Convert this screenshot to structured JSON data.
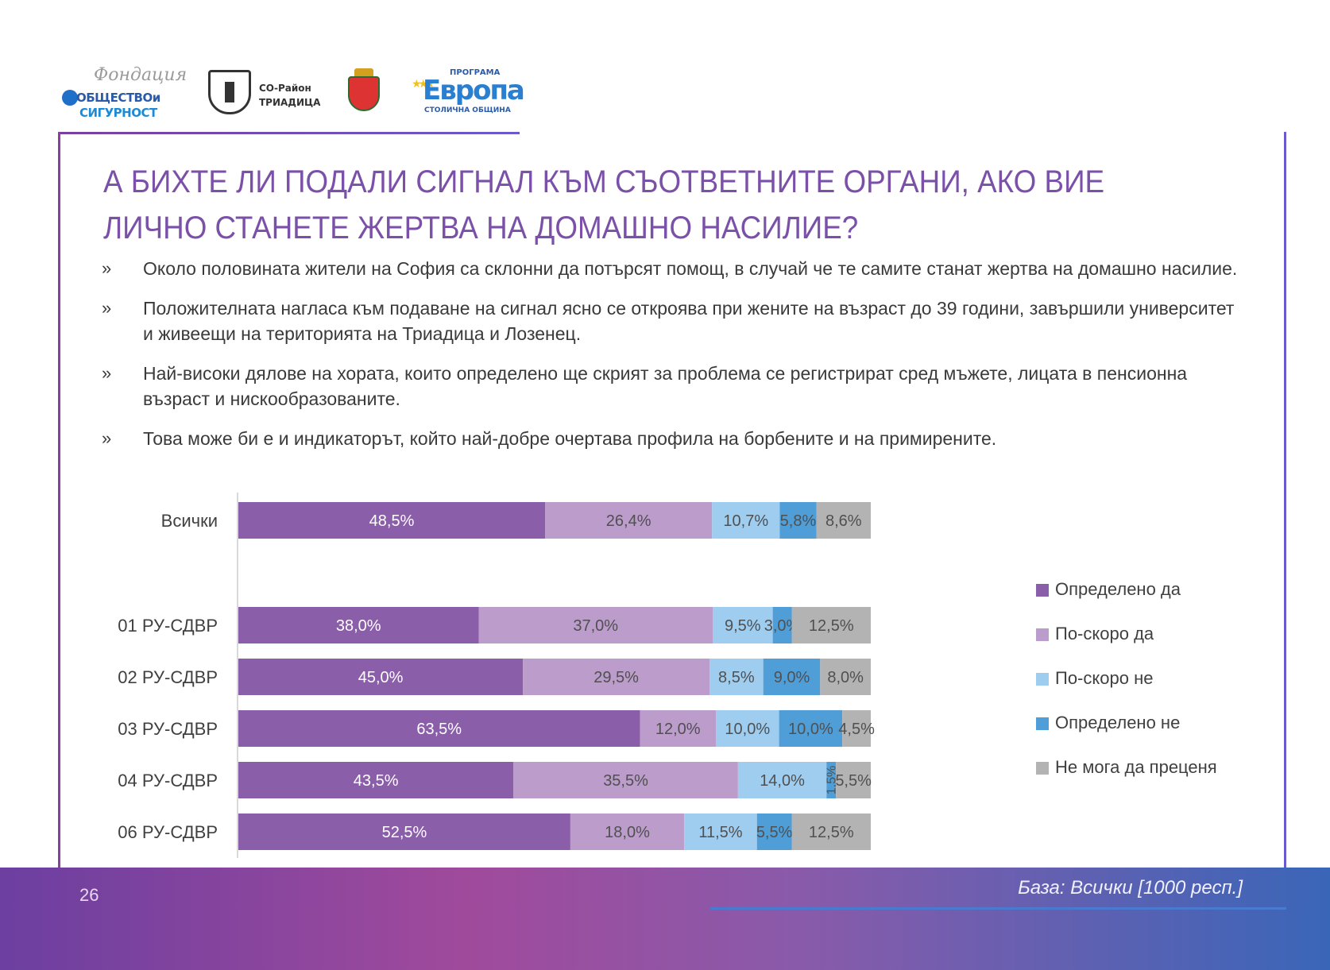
{
  "logos": {
    "foundation_script": "Фондация",
    "foundation_line1": "ОБЩЕСТВОи",
    "foundation_line2": "СИГУРНОСТ",
    "district_line1": "СО-Район",
    "district_line2": "ТРИАДИЦА",
    "program_top": "ПРОГРАМА",
    "program_main": "Европа",
    "program_bottom": "СТОЛИЧНА ОБЩИНА"
  },
  "title": "А БИХТЕ ЛИ ПОДАЛИ СИГНАЛ КЪМ СЪОТВЕТНИТЕ ОРГАНИ, АКО ВИЕ ЛИЧНО СТАНЕТЕ ЖЕРТВА НА ДОМАШНО НАСИЛИЕ?",
  "bullet_marker": "»",
  "bullets": [
    "Около половината жители на София са склонни да потърсят помощ, в случай че те самите станат жертва на домашно насилие.",
    "Положителната нагласа към подаване на сигнал ясно се откроява при жените на възраст до 39 години, завършили университет и живеещи на територията на Триадица и Лозенец.",
    "Най-високи дялове на хората, които определено ще скрият за проблема се регистрират сред мъжете, лицата в пенсионна възраст и нискообразованите.",
    "Това може би е и индикаторът, който най-добре очертава профила на борбените и на примирените."
  ],
  "chart_data": {
    "type": "bar",
    "orientation": "horizontal",
    "stacked": true,
    "categories": [
      "Всички",
      "01 РУ-СДВР",
      "02 РУ-СДВР",
      "03 РУ-СДВР",
      "04 РУ-СДВР",
      "06 РУ-СДВР"
    ],
    "series": [
      {
        "name": "Определено да",
        "color": "#8a5ea8",
        "values": [
          48.5,
          38.0,
          45.0,
          63.5,
          43.5,
          52.5
        ],
        "labels": [
          "48,5%",
          "38,0%",
          "45,0%",
          "63,5%",
          "43,5%",
          "52,5%"
        ]
      },
      {
        "name": "По-скоро да",
        "color": "#bb9ccb",
        "values": [
          26.4,
          37.0,
          29.5,
          12.0,
          35.5,
          18.0
        ],
        "labels": [
          "26,4%",
          "37,0%",
          "29,5%",
          "12,0%",
          "35,5%",
          "18,0%"
        ]
      },
      {
        "name": "По-скоро не",
        "color": "#9fcdf0",
        "values": [
          10.7,
          9.5,
          8.5,
          10.0,
          14.0,
          11.5
        ],
        "labels": [
          "10,7%",
          "9,5%",
          "8,5%",
          "10,0%",
          "14,0%",
          "11,5%"
        ]
      },
      {
        "name": "Определено не",
        "color": "#4f9ed8",
        "values": [
          5.8,
          3.0,
          9.0,
          10.0,
          1.5,
          5.5
        ],
        "labels": [
          "5,8%",
          "3,0%",
          "9,0%",
          "10,0%",
          "1,5%",
          "5,5%"
        ]
      },
      {
        "name": "Не мога да преценя",
        "color": "#b3b3b3",
        "values": [
          8.6,
          12.5,
          8.0,
          4.5,
          5.5,
          12.5
        ],
        "labels": [
          "8,6%",
          "12,5%",
          "8,0%",
          "4,5%",
          "5,5%",
          "12,5%"
        ]
      }
    ],
    "xlim": [
      0,
      100
    ],
    "legend_position": "right",
    "grid": false
  },
  "footer": {
    "page_number": "26",
    "base": "База: Всички [1000 респ.]"
  }
}
